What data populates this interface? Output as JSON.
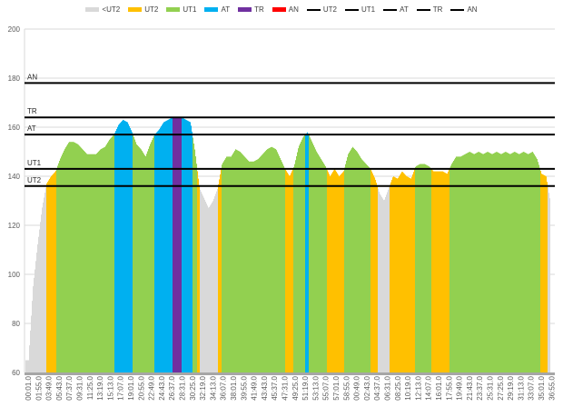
{
  "chart_data": {
    "type": "bar",
    "title": "",
    "xlabel": "",
    "ylabel": "",
    "ylim": [
      60,
      200
    ],
    "yticks": [
      60,
      80,
      100,
      120,
      140,
      160,
      180,
      200
    ],
    "grid": true,
    "legend_position": "top",
    "sample_interval_s": 50,
    "x_tick_labels": [
      "00:01.0",
      "01:55.0",
      "03:49.0",
      "05:43.0",
      "07:37.0",
      "09:31.0",
      "11:25.0",
      "13:19.0",
      "15:13.0",
      "17:07.0",
      "19:01.0",
      "20:55.0",
      "22:49.0",
      "24:43.0",
      "26:37.0",
      "28:31.0",
      "30:25.0",
      "32:19.0",
      "34:13.0",
      "36:07.0",
      "38:01.0",
      "39:55.0",
      "41:49.0",
      "43:43.0",
      "45:37.0",
      "47:31.0",
      "49:25.0",
      "51:19.0",
      "53:13.0",
      "55:07.0",
      "57:01.0",
      "58:55.0",
      "00:49.0",
      "02:43.0",
      "04:37.0",
      "06:31.0",
      "08:25.0",
      "10:19.0",
      "12:13.0",
      "14:07.0",
      "16:01.0",
      "17:55.0",
      "19:49.0",
      "21:43.0",
      "23:37.0",
      "25:31.0",
      "27:25.0",
      "29:19.0",
      "31:13.0",
      "33:07.0",
      "35:01.0",
      "36:55.0"
    ],
    "x_tick_interval_s": 114,
    "heart_rate": [
      65,
      95,
      112,
      127,
      137,
      140,
      142,
      147,
      151,
      154,
      154,
      153,
      151,
      149,
      149,
      149,
      151,
      152,
      155,
      157,
      161,
      163,
      162,
      158,
      153,
      151,
      148,
      153,
      157,
      159,
      162,
      163,
      164,
      164,
      164,
      163,
      162,
      150,
      135,
      131,
      127,
      130,
      135,
      145,
      148,
      148,
      151,
      150,
      148,
      146,
      146,
      147,
      149,
      151,
      152,
      151,
      147,
      143,
      140,
      144,
      152,
      156,
      158,
      154,
      150,
      147,
      144,
      140,
      143,
      140,
      142,
      149,
      152,
      150,
      147,
      145,
      143,
      139,
      133,
      130,
      135,
      140,
      139,
      142,
      140,
      139,
      144,
      145,
      145,
      144,
      142,
      142,
      142,
      141,
      145,
      148,
      148,
      149,
      150,
      149,
      150,
      149,
      150,
      149,
      150,
      149,
      150,
      149,
      150,
      149,
      150,
      149,
      150,
      147,
      141,
      140,
      129
    ],
    "zones": [
      {
        "name": "<UT2",
        "below": 136,
        "color": "#d9d9d9"
      },
      {
        "name": "UT2",
        "below": 143,
        "color": "#ffc000"
      },
      {
        "name": "UT1",
        "below": 157,
        "color": "#92d050"
      },
      {
        "name": "AT",
        "below": 164,
        "color": "#00b0f0"
      },
      {
        "name": "TR",
        "below": 178,
        "color": "#7030a0"
      },
      {
        "name": "AN",
        "below": 999,
        "color": "#ff0000"
      }
    ],
    "thresholds": [
      {
        "name": "AN",
        "value": 178
      },
      {
        "name": "TR",
        "value": 164
      },
      {
        "name": "AT",
        "value": 157
      },
      {
        "name": "UT1",
        "value": 143
      },
      {
        "name": "UT2",
        "value": 136
      }
    ],
    "legend": {
      "areas": [
        "<UT2",
        "UT2",
        "UT1",
        "AT",
        "TR",
        "AN"
      ],
      "lines": [
        "UT2",
        "UT1",
        "AT",
        "TR",
        "AN"
      ]
    }
  }
}
